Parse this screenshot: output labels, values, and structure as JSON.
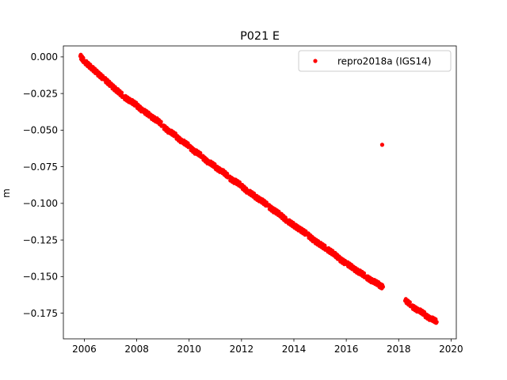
{
  "chart_data": {
    "type": "scatter",
    "title": "P021 E",
    "xlabel": "",
    "ylabel": "m",
    "xlim": [
      2005.2,
      2020.2
    ],
    "ylim": [
      -0.1925,
      0.0075
    ],
    "grid": false,
    "legend_placement": "top-right",
    "xticks": [
      2006,
      2008,
      2010,
      2012,
      2014,
      2016,
      2018,
      2020
    ],
    "xtick_labels": [
      "2006",
      "2008",
      "2010",
      "2012",
      "2014",
      "2016",
      "2018",
      "2020"
    ],
    "yticks": [
      0.0,
      -0.025,
      -0.05,
      -0.075,
      -0.1,
      -0.125,
      -0.15,
      -0.175
    ],
    "ytick_labels": [
      "0.000",
      "−0.025",
      "−0.050",
      "−0.075",
      "−0.100",
      "−0.125",
      "−0.150",
      "−0.175"
    ],
    "series": [
      {
        "name": "repro2018a (IGS14)",
        "color": "#ff0000",
        "marker": "circle",
        "x": [
          2005.85,
          2006.0,
          2006.25,
          2006.5,
          2006.75,
          2007.0,
          2007.25,
          2007.5,
          2007.75,
          2008.0,
          2008.25,
          2008.5,
          2008.75,
          2009.0,
          2009.25,
          2009.5,
          2009.75,
          2010.0,
          2010.25,
          2010.5,
          2010.75,
          2011.0,
          2011.25,
          2011.5,
          2011.75,
          2012.0,
          2012.25,
          2012.5,
          2012.75,
          2013.0,
          2013.25,
          2013.5,
          2013.75,
          2014.0,
          2014.25,
          2014.5,
          2014.75,
          2015.0,
          2015.25,
          2015.5,
          2015.75,
          2016.0,
          2016.25,
          2016.5,
          2016.75,
          2017.0,
          2017.25,
          2017.4,
          2017.37,
          2018.25,
          2018.5,
          2018.75,
          2019.0,
          2019.25,
          2019.45
        ],
        "y": [
          0.0005,
          -0.003,
          -0.007,
          -0.011,
          -0.015,
          -0.019,
          -0.023,
          -0.027,
          -0.03,
          -0.033,
          -0.037,
          -0.04,
          -0.043,
          -0.047,
          -0.051,
          -0.054,
          -0.058,
          -0.061,
          -0.065,
          -0.068,
          -0.072,
          -0.075,
          -0.078,
          -0.082,
          -0.085,
          -0.088,
          -0.092,
          -0.095,
          -0.098,
          -0.1015,
          -0.105,
          -0.108,
          -0.112,
          -0.115,
          -0.118,
          -0.121,
          -0.125,
          -0.128,
          -0.131,
          -0.134,
          -0.138,
          -0.141,
          -0.144,
          -0.147,
          -0.15,
          -0.153,
          -0.1555,
          -0.157,
          -0.06,
          -0.1665,
          -0.17,
          -0.173,
          -0.176,
          -0.179,
          -0.181
        ]
      }
    ]
  }
}
